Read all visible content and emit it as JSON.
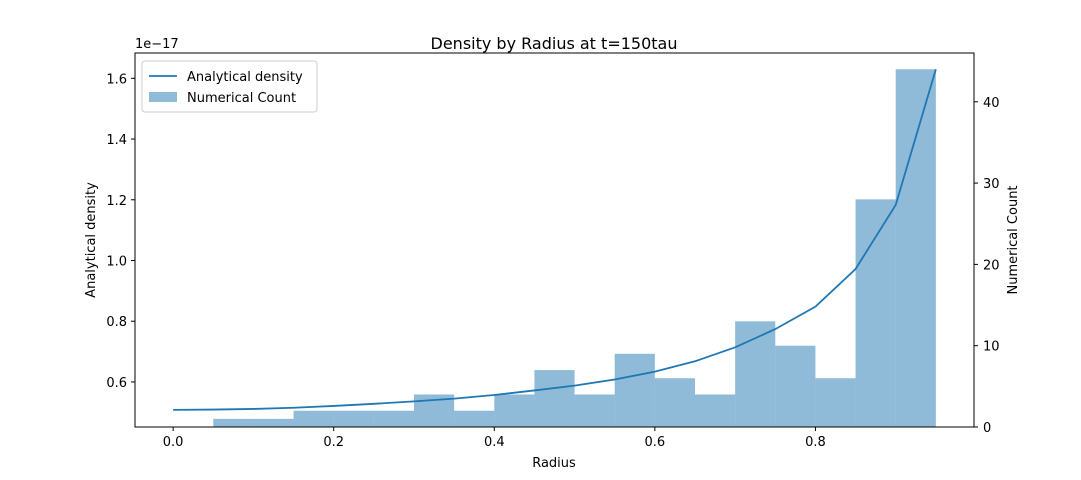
{
  "chart_data": {
    "type": "bar+line",
    "title": "Density by Radius at t=150tau",
    "xlabel": "Radius",
    "ylabel_left": "Analytical density",
    "ylabel_right": "Numerical Count",
    "left_offset_label": "1e−17",
    "xlim": [
      -0.0475,
      0.9975
    ],
    "ylim_left": [
      0.4516,
      1.6834
    ],
    "ylim_right": [
      0,
      46
    ],
    "x_ticks": [
      0.0,
      0.2,
      0.4,
      0.6,
      0.8
    ],
    "x_tick_labels": [
      "0.0",
      "0.2",
      "0.4",
      "0.6",
      "0.8"
    ],
    "left_ticks": [
      0.6,
      0.8,
      1.0,
      1.2,
      1.4,
      1.6
    ],
    "left_tick_labels": [
      "0.6",
      "0.8",
      "1.0",
      "1.2",
      "1.4",
      "1.6"
    ],
    "right_ticks": [
      0,
      10,
      20,
      30,
      40
    ],
    "right_tick_labels": [
      "0",
      "10",
      "20",
      "30",
      "40"
    ],
    "legend_position": "upper-left",
    "series": [
      {
        "name": "Analytical density",
        "kind": "line",
        "axis": "left",
        "color": "#1f77b4",
        "x": [
          0.0,
          0.05,
          0.1,
          0.15,
          0.2,
          0.25,
          0.3,
          0.35,
          0.4,
          0.45,
          0.5,
          0.55,
          0.6,
          0.65,
          0.7,
          0.75,
          0.8,
          0.85,
          0.9,
          0.95
        ],
        "y": [
          0.508,
          0.509,
          0.511,
          0.515,
          0.521,
          0.528,
          0.536,
          0.545,
          0.557,
          0.572,
          0.588,
          0.608,
          0.634,
          0.668,
          0.714,
          0.774,
          0.848,
          0.972,
          1.183,
          1.63
        ]
      },
      {
        "name": "Numerical Count",
        "kind": "bar",
        "axis": "right",
        "color": "#1f77b4",
        "opacity": 0.5,
        "bin_edges": [
          0.0,
          0.05,
          0.1,
          0.15,
          0.2,
          0.25,
          0.3,
          0.35,
          0.4,
          0.45,
          0.5,
          0.55,
          0.6,
          0.65,
          0.7,
          0.75,
          0.8,
          0.85,
          0.9,
          0.95
        ],
        "counts": [
          0,
          1,
          1,
          2,
          2,
          2,
          4,
          2,
          4,
          7,
          4,
          9,
          6,
          4,
          13,
          10,
          6,
          28,
          44
        ]
      }
    ]
  }
}
